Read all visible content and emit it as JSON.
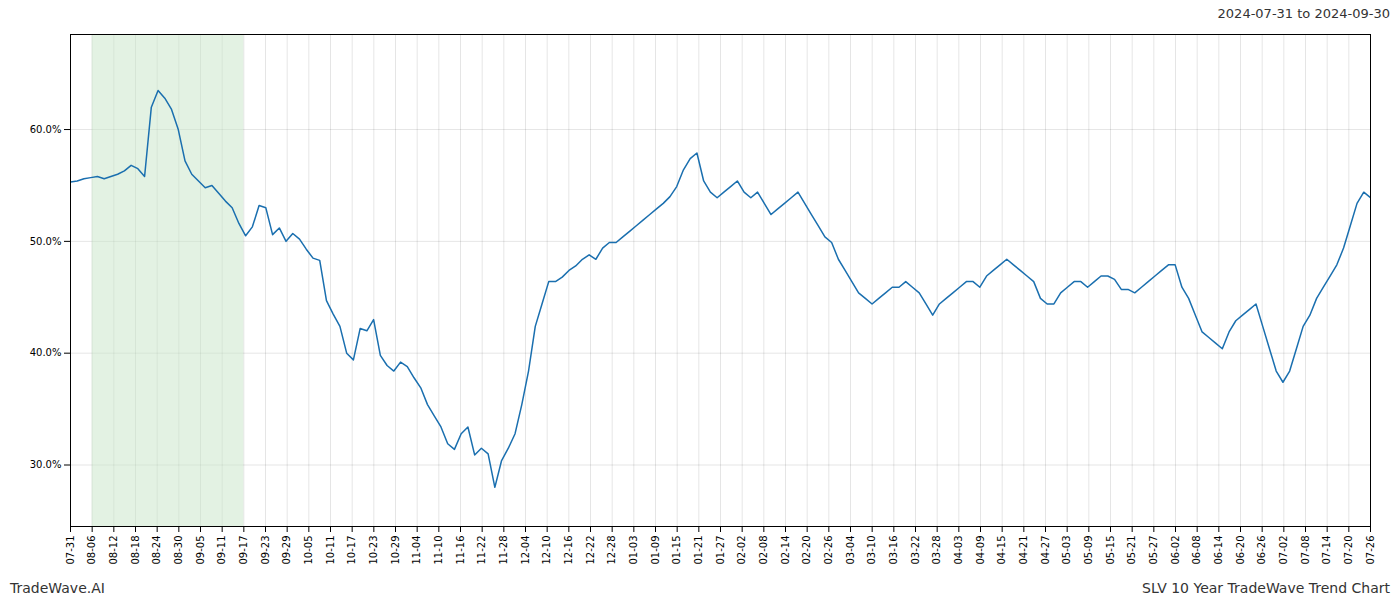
{
  "chart_data": {
    "type": "line",
    "title": "2024-07-31 to 2024-09-30",
    "footer": [
      "TradeWave.AI",
      "SLV 10 Year TradeWave Trend Chart"
    ],
    "color": "#1a6faf",
    "grid": true,
    "shaded": {
      "x": [
        3.216666666666667,
        25.733333333333334
      ],
      "color": "#c8e6c8"
    },
    "xlim": [
      0,
      193
    ],
    "xticks": [
      {
        "value": 0,
        "label": "07-31"
      },
      {
        "value": 3.216666666666667,
        "label": "08-06"
      },
      {
        "value": 6.433333333333334,
        "label": "08-12"
      },
      {
        "value": 9.65,
        "label": "08-18"
      },
      {
        "value": 12.866666666666667,
        "label": "08-24"
      },
      {
        "value": 16.083333333333332,
        "label": "08-30"
      },
      {
        "value": 19.3,
        "label": "09-05"
      },
      {
        "value": 22.516666666666666,
        "label": "09-11"
      },
      {
        "value": 25.733333333333334,
        "label": "09-17"
      },
      {
        "value": 28.95,
        "label": "09-23"
      },
      {
        "value": 32.166666666666664,
        "label": "09-29"
      },
      {
        "value": 35.38333333333333,
        "label": "10-05"
      },
      {
        "value": 38.6,
        "label": "10-11"
      },
      {
        "value": 41.81666666666667,
        "label": "10-17"
      },
      {
        "value": 45.03333333333333,
        "label": "10-23"
      },
      {
        "value": 48.25,
        "label": "10-29"
      },
      {
        "value": 51.46666666666667,
        "label": "11-04"
      },
      {
        "value": 54.68333333333333,
        "label": "11-10"
      },
      {
        "value": 57.9,
        "label": "11-16"
      },
      {
        "value": 61.11666666666667,
        "label": "11-22"
      },
      {
        "value": 64.33333333333333,
        "label": "11-28"
      },
      {
        "value": 67.55,
        "label": "12-04"
      },
      {
        "value": 70.76666666666667,
        "label": "12-10"
      },
      {
        "value": 73.98333333333333,
        "label": "12-16"
      },
      {
        "value": 77.2,
        "label": "12-22"
      },
      {
        "value": 80.41666666666667,
        "label": "12-28"
      },
      {
        "value": 83.63333333333334,
        "label": "01-03"
      },
      {
        "value": 86.85,
        "label": "01-09"
      },
      {
        "value": 90.06666666666666,
        "label": "01-15"
      },
      {
        "value": 93.28333333333333,
        "label": "01-21"
      },
      {
        "value": 96.5,
        "label": "01-27"
      },
      {
        "value": 99.71666666666667,
        "label": "02-02"
      },
      {
        "value": 102.93333333333334,
        "label": "02-08"
      },
      {
        "value": 106.15,
        "label": "02-14"
      },
      {
        "value": 109.36666666666666,
        "label": "02-20"
      },
      {
        "value": 112.58333333333333,
        "label": "02-26"
      },
      {
        "value": 115.8,
        "label": "03-04"
      },
      {
        "value": 119.01666666666667,
        "label": "03-10"
      },
      {
        "value": 122.23333333333333,
        "label": "03-16"
      },
      {
        "value": 125.45,
        "label": "03-22"
      },
      {
        "value": 128.66666666666666,
        "label": "03-28"
      },
      {
        "value": 131.88333333333333,
        "label": "04-03"
      },
      {
        "value": 135.1,
        "label": "04-09"
      },
      {
        "value": 138.31666666666666,
        "label": "04-15"
      },
      {
        "value": 141.53333333333333,
        "label": "04-21"
      },
      {
        "value": 144.75,
        "label": "04-27"
      },
      {
        "value": 147.96666666666667,
        "label": "05-03"
      },
      {
        "value": 151.18333333333334,
        "label": "05-09"
      },
      {
        "value": 154.4,
        "label": "05-15"
      },
      {
        "value": 157.61666666666667,
        "label": "05-21"
      },
      {
        "value": 160.83333333333334,
        "label": "05-27"
      },
      {
        "value": 164.05,
        "label": "06-02"
      },
      {
        "value": 167.26666666666668,
        "label": "06-08"
      },
      {
        "value": 170.48333333333332,
        "label": "06-14"
      },
      {
        "value": 173.7,
        "label": "06-20"
      },
      {
        "value": 176.91666666666666,
        "label": "06-26"
      },
      {
        "value": 180.13333333333333,
        "label": "07-02"
      },
      {
        "value": 183.35,
        "label": "07-08"
      },
      {
        "value": 186.56666666666666,
        "label": "07-14"
      },
      {
        "value": 189.78333333333333,
        "label": "07-20"
      },
      {
        "value": 193,
        "label": "07-26"
      }
    ],
    "ylim": [
      0.245,
      0.685
    ],
    "yticks": [
      {
        "value": 0.3,
        "label": "30.0%"
      },
      {
        "value": 0.4,
        "label": "40.0%"
      },
      {
        "value": 0.5,
        "label": "50.0%"
      },
      {
        "value": 0.6,
        "label": "60.0%"
      }
    ],
    "x": [
      0,
      1,
      2,
      3,
      4,
      5,
      6,
      7,
      8,
      9,
      10,
      11,
      12,
      13,
      14,
      15,
      16,
      17,
      18,
      19,
      20,
      21,
      22,
      23,
      24,
      25,
      26,
      27,
      28,
      29,
      30,
      31,
      32,
      33,
      34,
      35,
      36,
      37,
      38,
      39,
      40,
      41,
      42,
      43,
      44,
      45,
      46,
      47,
      48,
      49,
      50,
      51,
      52,
      53,
      54,
      55,
      56,
      57,
      58,
      59,
      60,
      61,
      62,
      63,
      64,
      65,
      66,
      67,
      68,
      69,
      70,
      71,
      72,
      73,
      74,
      75,
      76,
      77,
      78,
      79,
      80,
      81,
      82,
      83,
      84,
      85,
      86,
      87,
      88,
      89,
      90,
      91,
      92,
      93,
      94,
      95,
      96,
      97,
      98,
      99,
      100,
      101,
      102,
      103,
      104,
      105,
      106,
      107,
      108,
      109,
      110,
      111,
      112,
      113,
      114,
      115,
      116,
      117,
      118,
      119,
      120,
      121,
      122,
      123,
      124,
      125,
      126,
      127,
      128,
      129,
      130,
      131,
      132,
      133,
      134,
      135,
      136,
      137,
      138,
      139,
      140,
      141,
      142,
      143,
      144,
      145,
      146,
      147,
      148,
      149,
      150,
      151,
      152,
      153,
      154,
      155,
      156,
      157,
      158,
      159,
      160,
      161,
      162,
      163,
      164,
      165,
      166,
      167,
      168,
      169,
      170,
      171,
      172,
      173,
      174,
      175,
      176,
      177,
      178,
      179,
      180,
      181,
      182,
      183,
      184,
      185,
      186,
      187,
      188,
      189,
      190,
      191,
      192,
      193
    ],
    "values": [
      0.553,
      0.554,
      0.556,
      0.557,
      0.558,
      0.556,
      0.558,
      0.56,
      0.563,
      0.568,
      0.565,
      0.558,
      0.62,
      0.635,
      0.628,
      0.618,
      0.6,
      0.572,
      0.56,
      0.554,
      0.548,
      0.55,
      0.543,
      0.536,
      0.53,
      0.516,
      0.505,
      0.513,
      0.532,
      0.53,
      0.506,
      0.512,
      0.5,
      0.507,
      0.502,
      0.493,
      0.485,
      0.483,
      0.447,
      0.435,
      0.424,
      0.4,
      0.394,
      0.422,
      0.42,
      0.43,
      0.398,
      0.389,
      0.384,
      0.392,
      0.388,
      0.378,
      0.369,
      0.354,
      0.344,
      0.334,
      0.319,
      0.314,
      0.328,
      0.334,
      0.309,
      0.315,
      0.31,
      0.28,
      0.304,
      0.315,
      0.328,
      0.354,
      0.384,
      0.424,
      0.444,
      0.464,
      0.464,
      0.468,
      0.474,
      0.478,
      0.484,
      0.488,
      0.484,
      0.494,
      0.499,
      0.499,
      0.504,
      0.509,
      0.514,
      0.519,
      0.524,
      0.529,
      0.534,
      0.54,
      0.549,
      0.564,
      0.574,
      0.579,
      0.554,
      0.544,
      0.539,
      0.544,
      0.549,
      0.554,
      0.544,
      0.539,
      0.544,
      0.534,
      0.524,
      0.529,
      0.534,
      0.539,
      0.544,
      0.534,
      0.524,
      0.514,
      0.504,
      0.499,
      0.484,
      0.474,
      0.464,
      0.454,
      0.449,
      0.444,
      0.449,
      0.454,
      0.459,
      0.459,
      0.464,
      0.459,
      0.454,
      0.444,
      0.434,
      0.444,
      0.449,
      0.454,
      0.459,
      0.464,
      0.464,
      0.459,
      0.469,
      0.474,
      0.479,
      0.484,
      0.479,
      0.474,
      0.469,
      0.464,
      0.449,
      0.444,
      0.444,
      0.454,
      0.459,
      0.464,
      0.464,
      0.459,
      0.464,
      0.469,
      0.469,
      0.466,
      0.457,
      0.457,
      0.454,
      0.459,
      0.464,
      0.469,
      0.474,
      0.479,
      0.479,
      0.459,
      0.449,
      0.434,
      0.419,
      0.414,
      0.409,
      0.404,
      0.419,
      0.429,
      0.434,
      0.439,
      0.444,
      0.424,
      0.404,
      0.384,
      0.374,
      0.384,
      0.404,
      0.424,
      0.434,
      0.449,
      0.459,
      0.469,
      0.479,
      0.494,
      0.514,
      0.534,
      0.544,
      0.539
    ]
  }
}
